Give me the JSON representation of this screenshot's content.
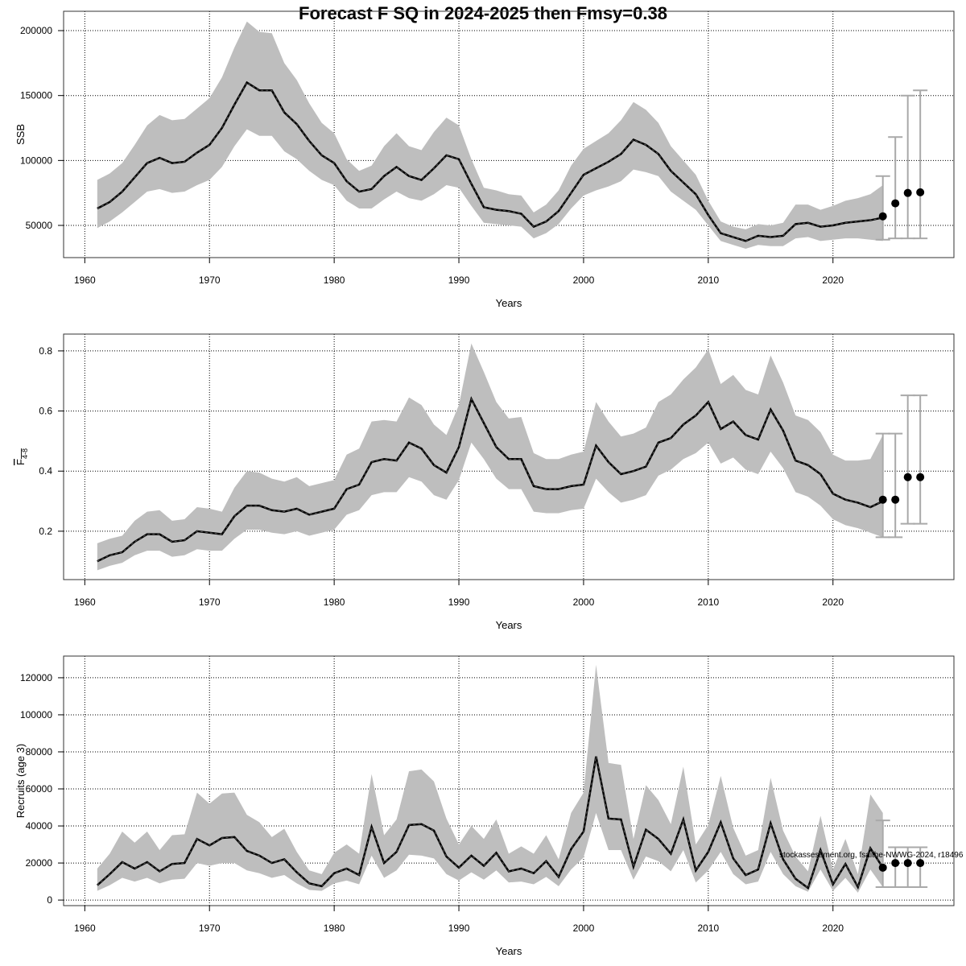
{
  "title": "Forecast F SQ in 2024-2025 then Fmsy=0.38",
  "watermark": "stockassessment.org, fsaithe-NWWG-2024, r18496",
  "colors": {
    "band": "#bebebe",
    "line": "#000000",
    "forecast_bar": "#a9a9a9",
    "grid": "#000000"
  },
  "chart_data": [
    {
      "type": "line",
      "xlabel": "Years",
      "ylabel": "SSB",
      "xlim": [
        1958.3,
        2029.7
      ],
      "ylim": [
        25200,
        214900
      ],
      "grid": true,
      "xticks": [
        1960,
        1970,
        1980,
        1990,
        2000,
        2010,
        2020
      ],
      "yticks": [
        50000,
        100000,
        150000,
        200000
      ],
      "xtick_labels": [
        "1960",
        "1970",
        "1980",
        "1990",
        "2000",
        "2010",
        "2020"
      ],
      "ytick_labels": [
        "50000",
        "100000",
        "150000",
        "200000"
      ],
      "start_year": 1961,
      "estimate": [
        63000,
        68000,
        76000,
        87000,
        98000,
        102000,
        98000,
        99000,
        106000,
        112000,
        125000,
        143000,
        160000,
        154000,
        154000,
        137000,
        128000,
        115000,
        104000,
        98000,
        84000,
        76000,
        78000,
        88000,
        95000,
        88000,
        85000,
        94000,
        104000,
        101000,
        82000,
        64000,
        62000,
        61000,
        59000,
        49000,
        53000,
        61000,
        75000,
        89000,
        94000,
        99000,
        105000,
        116000,
        112000,
        105000,
        92000,
        83000,
        74000,
        58000,
        44000,
        41000,
        38000,
        42000,
        41000,
        42000,
        51000,
        52000,
        49000,
        50000,
        52000,
        53000,
        54000,
        56000
      ],
      "lower": [
        48000,
        53000,
        60000,
        68000,
        76000,
        78000,
        75000,
        76000,
        81000,
        85000,
        95000,
        111000,
        124000,
        119000,
        119000,
        107000,
        101000,
        92000,
        85000,
        81000,
        69000,
        63000,
        63000,
        70000,
        76000,
        71000,
        69000,
        74000,
        81000,
        79000,
        65000,
        52000,
        51000,
        50000,
        49000,
        40000,
        44000,
        51000,
        63000,
        73000,
        77000,
        80000,
        84000,
        93000,
        91000,
        88000,
        76000,
        69000,
        62000,
        50000,
        38000,
        35000,
        32000,
        35000,
        34000,
        34000,
        40000,
        41000,
        38000,
        39000,
        40000,
        40000,
        39000,
        38000
      ],
      "upper": [
        85000,
        90000,
        98000,
        112000,
        127000,
        135000,
        131000,
        132000,
        140000,
        148000,
        164000,
        187000,
        207000,
        199000,
        198000,
        175000,
        162000,
        144000,
        129000,
        121000,
        101000,
        92000,
        96000,
        111000,
        121000,
        111000,
        108000,
        122000,
        133000,
        127000,
        101000,
        79000,
        77000,
        74000,
        73000,
        60000,
        66000,
        77000,
        96000,
        109000,
        115000,
        121000,
        131000,
        145000,
        139000,
        129000,
        111000,
        100000,
        89000,
        69000,
        53000,
        49000,
        47000,
        51000,
        50000,
        52000,
        66000,
        66000,
        62000,
        65000,
        69000,
        71000,
        74000,
        81000
      ],
      "forecast": {
        "years": [
          2024,
          2025,
          2026,
          2027
        ],
        "values": [
          57000,
          67000,
          75000,
          75500
        ],
        "lower": [
          39000,
          40000,
          40000,
          40000
        ],
        "upper": [
          88000,
          118000,
          150000,
          154000
        ]
      }
    },
    {
      "type": "line",
      "xlabel": "Years",
      "ylabel": "F",
      "ylabel_sub": "4-8",
      "xlim": [
        1958.3,
        2029.7
      ],
      "ylim": [
        0.039,
        0.856
      ],
      "grid": true,
      "xticks": [
        1960,
        1970,
        1980,
        1990,
        2000,
        2010,
        2020
      ],
      "yticks": [
        0.2,
        0.4,
        0.6,
        0.8
      ],
      "xtick_labels": [
        "1960",
        "1970",
        "1980",
        "1990",
        "2000",
        "2010",
        "2020"
      ],
      "ytick_labels": [
        "0.2",
        "0.4",
        "0.6",
        "0.8"
      ],
      "start_year": 1961,
      "estimate": [
        0.1,
        0.12,
        0.13,
        0.165,
        0.19,
        0.19,
        0.165,
        0.17,
        0.2,
        0.195,
        0.19,
        0.25,
        0.285,
        0.285,
        0.27,
        0.265,
        0.275,
        0.255,
        0.265,
        0.275,
        0.34,
        0.355,
        0.43,
        0.44,
        0.435,
        0.495,
        0.475,
        0.42,
        0.395,
        0.48,
        0.64,
        0.56,
        0.48,
        0.44,
        0.44,
        0.35,
        0.34,
        0.34,
        0.35,
        0.355,
        0.485,
        0.43,
        0.39,
        0.4,
        0.415,
        0.495,
        0.51,
        0.555,
        0.585,
        0.63,
        0.54,
        0.565,
        0.52,
        0.505,
        0.605,
        0.535,
        0.435,
        0.42,
        0.39,
        0.325,
        0.305,
        0.295,
        0.28,
        0.3
      ],
      "lower": [
        0.07,
        0.085,
        0.095,
        0.12,
        0.135,
        0.135,
        0.115,
        0.12,
        0.14,
        0.135,
        0.135,
        0.175,
        0.205,
        0.205,
        0.195,
        0.19,
        0.2,
        0.185,
        0.195,
        0.205,
        0.255,
        0.27,
        0.32,
        0.33,
        0.33,
        0.38,
        0.365,
        0.32,
        0.305,
        0.37,
        0.495,
        0.44,
        0.375,
        0.34,
        0.34,
        0.265,
        0.26,
        0.26,
        0.27,
        0.275,
        0.375,
        0.33,
        0.295,
        0.305,
        0.32,
        0.385,
        0.405,
        0.44,
        0.46,
        0.495,
        0.425,
        0.445,
        0.405,
        0.39,
        0.465,
        0.41,
        0.33,
        0.315,
        0.285,
        0.24,
        0.22,
        0.21,
        0.195,
        0.18
      ],
      "upper": [
        0.16,
        0.175,
        0.185,
        0.235,
        0.265,
        0.27,
        0.235,
        0.24,
        0.28,
        0.275,
        0.265,
        0.345,
        0.4,
        0.395,
        0.375,
        0.365,
        0.38,
        0.35,
        0.36,
        0.37,
        0.455,
        0.475,
        0.565,
        0.57,
        0.565,
        0.645,
        0.62,
        0.555,
        0.52,
        0.62,
        0.825,
        0.73,
        0.63,
        0.575,
        0.58,
        0.46,
        0.44,
        0.44,
        0.455,
        0.465,
        0.63,
        0.565,
        0.515,
        0.525,
        0.545,
        0.63,
        0.655,
        0.705,
        0.745,
        0.805,
        0.69,
        0.72,
        0.67,
        0.655,
        0.785,
        0.695,
        0.585,
        0.57,
        0.53,
        0.455,
        0.435,
        0.435,
        0.44,
        0.52
      ],
      "forecast": {
        "years": [
          2024,
          2025,
          2026,
          2027
        ],
        "values": [
          0.305,
          0.305,
          0.38,
          0.38
        ],
        "lower": [
          0.18,
          0.18,
          0.225,
          0.225
        ],
        "upper": [
          0.525,
          0.525,
          0.652,
          0.652
        ]
      }
    },
    {
      "type": "line",
      "xlabel": "Years",
      "ylabel": "Recruits (age 3)",
      "xlim": [
        1958.3,
        2029.7
      ],
      "ylim": [
        -3000,
        131700
      ],
      "grid": true,
      "xticks": [
        1960,
        1970,
        1980,
        1990,
        2000,
        2010,
        2020
      ],
      "yticks": [
        0,
        20000,
        40000,
        60000,
        80000,
        100000,
        120000
      ],
      "xtick_labels": [
        "1960",
        "1970",
        "1980",
        "1990",
        "2000",
        "2010",
        "2020"
      ],
      "ytick_labels": [
        "0",
        "20000",
        "40000",
        "60000",
        "80000",
        "100000",
        "120000"
      ],
      "start_year": 1961,
      "estimate": [
        8000,
        14000,
        20500,
        17000,
        20500,
        15500,
        19500,
        20000,
        33000,
        29500,
        33500,
        34000,
        26500,
        24000,
        20000,
        22000,
        15000,
        9000,
        7500,
        14500,
        17000,
        13500,
        39500,
        20000,
        26000,
        40500,
        41000,
        37500,
        23500,
        17500,
        24000,
        18500,
        25500,
        15500,
        17000,
        14500,
        21000,
        12500,
        27500,
        37000,
        77500,
        44000,
        43500,
        18000,
        38000,
        33000,
        25000,
        43500,
        16000,
        26000,
        42000,
        22500,
        13500,
        16500,
        41500,
        22000,
        11500,
        6500,
        27000,
        8500,
        19500,
        7000,
        28000,
        17500
      ],
      "lower": [
        5000,
        8000,
        12000,
        10000,
        12000,
        9000,
        11000,
        11500,
        20000,
        18500,
        20000,
        20000,
        16000,
        14500,
        12000,
        13500,
        9000,
        5500,
        5000,
        9000,
        10500,
        8500,
        24000,
        12000,
        16000,
        24500,
        24000,
        22500,
        14000,
        10500,
        15000,
        11000,
        16000,
        9500,
        10000,
        8500,
        12500,
        7500,
        16500,
        23000,
        47000,
        27000,
        27000,
        11000,
        23500,
        21000,
        15500,
        27000,
        9500,
        16000,
        26000,
        14000,
        8500,
        10000,
        26000,
        14000,
        7500,
        4500,
        16500,
        5000,
        12000,
        4000,
        16500,
        7000
      ],
      "upper": [
        17000,
        25000,
        37000,
        31000,
        37000,
        27000,
        35000,
        35500,
        58000,
        52000,
        57500,
        58000,
        46000,
        42000,
        34000,
        38500,
        26000,
        16000,
        14000,
        25500,
        30000,
        25000,
        68000,
        35000,
        43500,
        69500,
        70500,
        64000,
        44000,
        30000,
        40000,
        33000,
        43500,
        25000,
        29000,
        25000,
        35000,
        22000,
        47000,
        58000,
        127000,
        74000,
        73000,
        33000,
        62000,
        54000,
        41000,
        72000,
        30000,
        40500,
        67000,
        39000,
        24000,
        27000,
        66000,
        37500,
        23500,
        15500,
        45500,
        16500,
        33000,
        14000,
        57000,
        47000
      ],
      "forecast": {
        "years": [
          2024,
          2025,
          2026,
          2027
        ],
        "values": [
          17500,
          20000,
          20000,
          20000
        ],
        "lower": [
          7000,
          7000,
          7000,
          7000
        ],
        "upper": [
          43000,
          28500,
          28500,
          28500
        ]
      }
    }
  ]
}
